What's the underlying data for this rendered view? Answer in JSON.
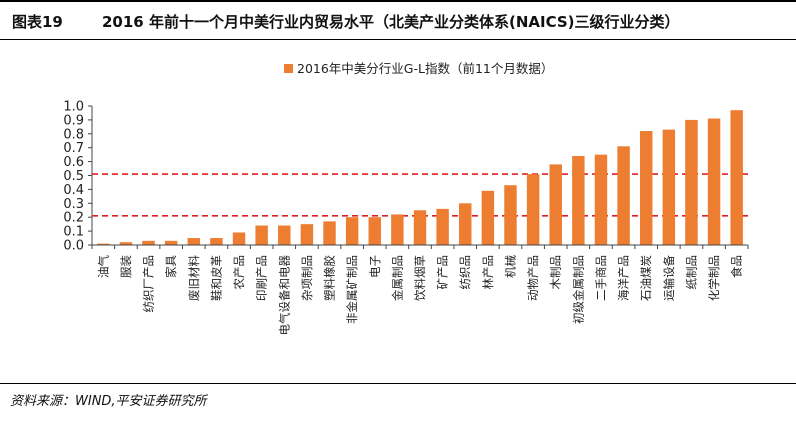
{
  "header": {
    "figure_label": "图表19",
    "title": "2016 年前十一个月中美行业内贸易水平（北美产业分类体系(NAICS)三级行业分类）"
  },
  "footer": {
    "source": "资料来源：WIND,平安证券研究所"
  },
  "colors": {
    "bar": "#ED7D31",
    "reference_line": "#E02020",
    "axis": "#444444"
  },
  "chart_data": {
    "type": "bar",
    "title": "2016 年前十一个月中美行业内贸易水平（北美产业分类体系(NAICS)三级行业分类）",
    "legend": [
      "2016年中美分行业G-L指数（前11个月数据）"
    ],
    "legend_position": "top-right",
    "ylim": [
      0,
      1.0
    ],
    "yticks": [
      "0.0",
      "0.1",
      "0.2",
      "0.3",
      "0.4",
      "0.5",
      "0.6",
      "0.7",
      "0.8",
      "0.9",
      "1.0"
    ],
    "reference_lines": [
      0.21,
      0.51
    ],
    "categories": [
      "油气",
      "服装",
      "纺织厂产品",
      "家具",
      "废旧材料",
      "鞋和皮革",
      "农产品",
      "印刷产品",
      "电气设备和电器",
      "杂项制品",
      "塑料橡胶",
      "非金属矿制品",
      "电子",
      "金属制品",
      "饮料烟草",
      "矿产品",
      "纺织品",
      "林产品",
      "机械",
      "动物产品",
      "木制品",
      "初级金属制品",
      "二手商品",
      "海洋产品",
      "石油煤炭",
      "运输设备",
      "纸制品",
      "化学制品",
      "食品"
    ],
    "series": [
      {
        "name": "2016年中美分行业G-L指数（前11个月数据）",
        "values": [
          0.01,
          0.02,
          0.03,
          0.03,
          0.05,
          0.05,
          0.09,
          0.14,
          0.14,
          0.15,
          0.17,
          0.2,
          0.2,
          0.22,
          0.25,
          0.26,
          0.3,
          0.39,
          0.43,
          0.51,
          0.58,
          0.64,
          0.65,
          0.71,
          0.82,
          0.83,
          0.9,
          0.91,
          0.97
        ]
      }
    ]
  }
}
